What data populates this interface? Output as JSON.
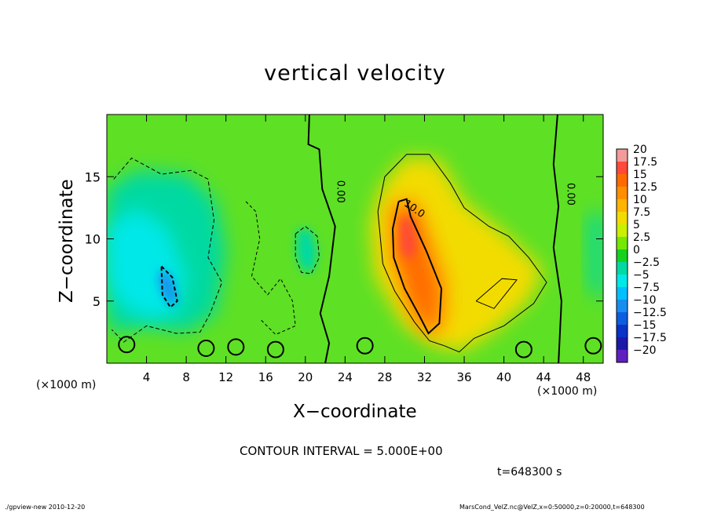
{
  "chart_data": {
    "type": "heatmap",
    "title": "vertical velocity",
    "xlabel": "X−coordinate",
    "ylabel": "Z−coordinate",
    "x_unit_left": "(×1000 m)",
    "x_unit_right": "(×1000 m)",
    "xlim": [
      0,
      50
    ],
    "ylim": [
      0,
      20
    ],
    "x_ticks": [
      4,
      8,
      12,
      16,
      20,
      24,
      28,
      32,
      36,
      40,
      44,
      48
    ],
    "y_ticks": [
      5,
      10,
      15
    ],
    "colorbar": {
      "levels": [
        20,
        17.5,
        15,
        12.5,
        10,
        7.5,
        5,
        2.5,
        0,
        -2.5,
        -5,
        -7.5,
        -10,
        -12.5,
        -15,
        -17.5,
        -20
      ],
      "labels": [
        "20",
        "17.5",
        "15",
        "12.5",
        "10",
        "7.5",
        "5",
        "2.5",
        "0",
        "−2.5",
        "−5",
        "−7.5",
        "−10",
        "−12.5",
        "−15",
        "−17.5",
        "−20"
      ],
      "colors": [
        "#f39a9a",
        "#ff4a3a",
        "#ff6a00",
        "#ff8f00",
        "#ffb400",
        "#f2dc00",
        "#c8f000",
        "#74e800",
        "#15d21e",
        "#00d9a2",
        "#00e8e8",
        "#00bfff",
        "#168ef0",
        "#0c5ee0",
        "#0a31c8",
        "#1c18a8",
        "#6020c0"
      ]
    },
    "contour_labels": [
      {
        "text": "0.00",
        "x": 23.2,
        "y": 13.8
      },
      {
        "text": "10.0",
        "x": 30.8,
        "y": 12.2
      },
      {
        "text": "0.00",
        "x": 46.4,
        "y": 13.6
      }
    ],
    "features": [
      {
        "kind": "updraft",
        "x": 31.5,
        "z": 8.0,
        "w_max": 17.5
      },
      {
        "kind": "updraft-halo",
        "x": 34.0,
        "z": 8.5,
        "w": 5.0
      },
      {
        "kind": "downdraft",
        "x": 6.3,
        "z": 6.3,
        "w_min": -12.5
      },
      {
        "kind": "downdraft-region",
        "x": 6.0,
        "z": 9.0,
        "w": -7.5
      },
      {
        "kind": "downdraft",
        "x": 20.3,
        "z": 9.3,
        "w": -7.5
      }
    ],
    "contour_interval": 5.0
  },
  "contour_interval_text": "CONTOUR INTERVAL = 5.000E+00",
  "time_text": "t=648300 s",
  "footer_left": "./gpview-new   2010-12-20",
  "footer_right": "MarsCond_VelZ.nc@VelZ,x=0:50000,z=0:20000,t=648300"
}
